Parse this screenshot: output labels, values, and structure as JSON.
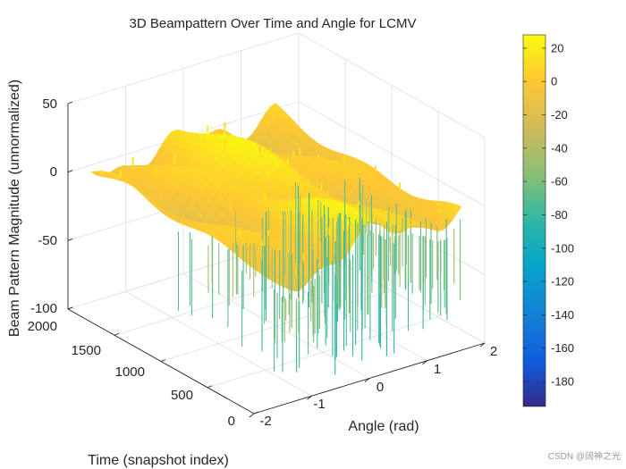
{
  "chart_data": {
    "type": "surface",
    "title": "3D Beampattern Over Time and Angle for LCMV",
    "xlabel": "Angle (rad)",
    "ylabel": "Time (snapshot index)",
    "zlabel": "Beam Pattern Magnitude (unnormalized)",
    "x_ticks": [
      "-2",
      "-1",
      "0",
      "1",
      "2"
    ],
    "y_ticks": [
      "0",
      "500",
      "1000",
      "1500",
      "2000"
    ],
    "z_ticks": [
      "-100",
      "-50",
      "0",
      "50"
    ],
    "xlim": [
      -2,
      2
    ],
    "ylim": [
      0,
      2000
    ],
    "zlim": [
      -100,
      50
    ],
    "grid": true,
    "colorbar": {
      "ticks": [
        "20",
        "0",
        "-20",
        "-40",
        "-60",
        "-80",
        "-100",
        "-120",
        "-140",
        "-160",
        "-180"
      ],
      "range": [
        -195,
        28
      ],
      "colormap": "parula"
    },
    "surface": {
      "typical_level": 0,
      "peak_level": 25,
      "deep_null_level": -80,
      "angle_span": [
        -1.6,
        1.6
      ],
      "time_span": [
        0,
        2000
      ]
    }
  },
  "watermark": "CSDN @阔神之光"
}
